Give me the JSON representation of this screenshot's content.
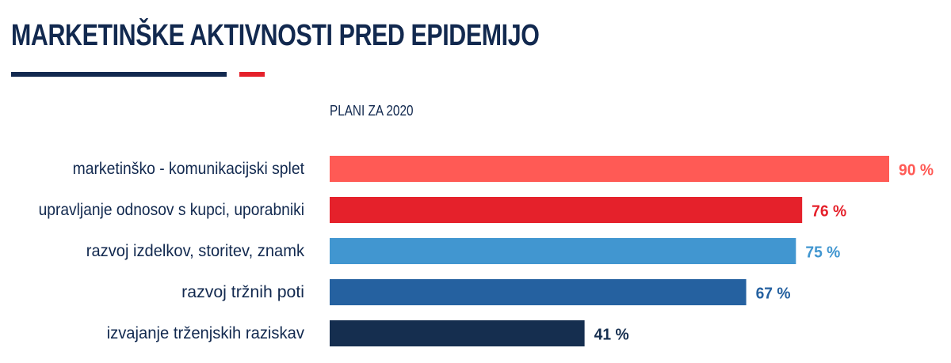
{
  "title": "MARKETINŠKE AKTIVNOSTI PRED EPIDEMIJO",
  "chart_data": {
    "type": "bar",
    "orientation": "horizontal",
    "series_label": "PLANI ZA 2020",
    "categories": [
      "marketinško - komunikacijski splet",
      "upravljanje odnosov s kupci, uporabniki",
      "razvoj izdelkov, storitev, znamk",
      "razvoj tržnih poti",
      "izvajanje trženjskih raziskav"
    ],
    "values": [
      90,
      76,
      75,
      67,
      41
    ],
    "value_labels": [
      "90 %",
      "76 %",
      "75 %",
      "67 %",
      "41 %"
    ],
    "bar_colors": [
      "#ff5a55",
      "#e5212b",
      "#4196d0",
      "#2561a0",
      "#152e4f"
    ],
    "label_colors": [
      "#ff5a55",
      "#e5212b",
      "#4196d0",
      "#2561a0",
      "#152e4f"
    ],
    "xlim": [
      0,
      90
    ],
    "grid": false,
    "legend": false
  },
  "colors": {
    "navy": "#12294f",
    "accent_red": "#e5212b"
  }
}
